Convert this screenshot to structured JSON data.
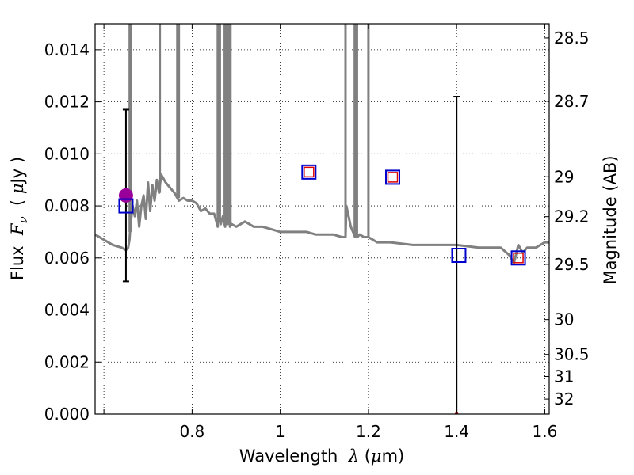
{
  "chart_data": {
    "type": "line",
    "title": "",
    "xlabel_parts": [
      "Wavelength  ",
      "λ",
      " (",
      "μ",
      "m)"
    ],
    "ylabel_parts": [
      "Flux  ",
      "F",
      "ν",
      "  ( ",
      "μ",
      "Jy )"
    ],
    "y2label": "Magnitude (AB)",
    "xlim": [
      0.58,
      1.61
    ],
    "ylim": [
      0.0,
      0.015
    ],
    "grid": true,
    "x_ticks": [
      {
        "v": 0.6,
        "label": ""
      },
      {
        "v": 0.8,
        "label": "0.8"
      },
      {
        "v": 1.0,
        "label": "1"
      },
      {
        "v": 1.2,
        "label": "1.2"
      },
      {
        "v": 1.4,
        "label": "1.4"
      },
      {
        "v": 1.6,
        "label": "1.6"
      }
    ],
    "y_ticks": [
      {
        "v": 0.0,
        "label": "0.000"
      },
      {
        "v": 0.002,
        "label": "0.002"
      },
      {
        "v": 0.004,
        "label": "0.004"
      },
      {
        "v": 0.006,
        "label": "0.006"
      },
      {
        "v": 0.008,
        "label": "0.008"
      },
      {
        "v": 0.01,
        "label": "0.010"
      },
      {
        "v": 0.012,
        "label": "0.012"
      },
      {
        "v": 0.014,
        "label": "0.014"
      }
    ],
    "y2_ticks": [
      {
        "v": 28.5,
        "label": "28.5"
      },
      {
        "v": 28.7,
        "label": "28.7"
      },
      {
        "v": 29.0,
        "label": "29"
      },
      {
        "v": 29.2,
        "label": "29.2"
      },
      {
        "v": 29.5,
        "label": "29.5"
      },
      {
        "v": 30.0,
        "label": "30"
      },
      {
        "v": 30.5,
        "label": "30.5"
      },
      {
        "v": 31.0,
        "label": "31"
      },
      {
        "v": 32.0,
        "label": "32"
      }
    ],
    "colors": {
      "model": "#808080",
      "model_square": "#0000cc",
      "obs_square": "#dd0000",
      "obs_point": "#990099",
      "errorbar": "#000000",
      "upper_limit": "#bb0000"
    },
    "model_spectrum": {
      "name": "",
      "x": [
        0.58,
        0.6,
        0.62,
        0.64,
        0.65,
        0.655,
        0.658,
        0.66,
        0.665,
        0.67,
        0.675,
        0.68,
        0.685,
        0.69,
        0.695,
        0.7,
        0.705,
        0.71,
        0.715,
        0.72,
        0.725,
        0.73,
        0.74,
        0.75,
        0.76,
        0.77,
        0.78,
        0.79,
        0.8,
        0.81,
        0.82,
        0.83,
        0.84,
        0.85,
        0.855,
        0.858,
        0.86,
        0.865,
        0.87,
        0.875,
        0.877,
        0.88,
        0.883,
        0.886,
        0.89,
        0.9,
        0.92,
        0.94,
        0.96,
        0.98,
        1.0,
        1.02,
        1.04,
        1.06,
        1.08,
        1.1,
        1.12,
        1.14,
        1.148,
        1.15,
        1.16,
        1.17,
        1.175,
        1.18,
        1.19,
        1.2,
        1.21,
        1.22,
        1.25,
        1.3,
        1.35,
        1.4,
        1.45,
        1.48,
        1.5,
        1.52,
        1.53,
        1.54,
        1.55,
        1.56,
        1.58,
        1.6,
        1.61
      ],
      "y": [
        0.0069,
        0.0067,
        0.0065,
        0.0064,
        0.0063,
        0.0064,
        0.0067,
        0.0072,
        0.008,
        0.0076,
        0.0082,
        0.0072,
        0.008,
        0.0084,
        0.0075,
        0.0089,
        0.0078,
        0.0088,
        0.0082,
        0.009,
        0.0085,
        0.0092,
        0.0089,
        0.0087,
        0.0085,
        0.0082,
        0.0083,
        0.0082,
        0.0082,
        0.0081,
        0.0078,
        0.0079,
        0.0077,
        0.0077,
        0.0074,
        0.0072,
        0.0078,
        0.0073,
        0.0076,
        0.0072,
        0.0078,
        0.0073,
        0.0076,
        0.0072,
        0.0073,
        0.0072,
        0.0074,
        0.0072,
        0.0072,
        0.0071,
        0.007,
        0.007,
        0.007,
        0.007,
        0.0069,
        0.0069,
        0.0069,
        0.0068,
        0.0068,
        0.008,
        0.0072,
        0.0068,
        0.0068,
        0.0069,
        0.0068,
        0.0068,
        0.0067,
        0.0066,
        0.0066,
        0.0065,
        0.0065,
        0.0065,
        0.0064,
        0.0064,
        0.0064,
        0.0061,
        0.0058,
        0.0065,
        0.0062,
        0.0064,
        0.0064,
        0.0066,
        0.0066
      ]
    },
    "model_spikes": [
      {
        "x": 0.6585,
        "y0": 0.007
      },
      {
        "x": 0.6615,
        "y0": 0.007
      },
      {
        "x": 0.7267,
        "y0": 0.0085
      },
      {
        "x": 0.7665,
        "y0": 0.0083
      },
      {
        "x": 0.7699,
        "y0": 0.0083
      },
      {
        "x": 0.8583,
        "y0": 0.0074
      },
      {
        "x": 0.863,
        "y0": 0.0074
      },
      {
        "x": 0.874,
        "y0": 0.0073
      },
      {
        "x": 0.879,
        "y0": 0.0073
      },
      {
        "x": 0.882,
        "y0": 0.0073
      },
      {
        "x": 0.885,
        "y0": 0.0073
      },
      {
        "x": 0.887,
        "y0": 0.0073
      },
      {
        "x": 1.148,
        "y0": 0.0068
      },
      {
        "x": 1.169,
        "y0": 0.0068
      },
      {
        "x": 1.174,
        "y0": 0.0068
      },
      {
        "x": 1.2,
        "y0": 0.0068
      }
    ],
    "model_photometry": [
      {
        "x": 0.65,
        "y": 0.008
      },
      {
        "x": 1.065,
        "y": 0.0093
      },
      {
        "x": 1.255,
        "y": 0.0091
      },
      {
        "x": 1.405,
        "y": 0.0061
      },
      {
        "x": 1.54,
        "y": 0.006
      }
    ],
    "observed_photometry": [
      {
        "x": 1.065,
        "y": 0.0093
      },
      {
        "x": 1.255,
        "y": 0.0091
      },
      {
        "x": 1.54,
        "y": 0.006
      }
    ],
    "detection": {
      "x": 0.65,
      "y": 0.0084,
      "err_low": 0.0051,
      "err_high": 0.0117
    },
    "upper_limit": {
      "x": 1.4,
      "y": 0.0,
      "err_low": 0.0,
      "err_high": 0.0122
    }
  }
}
